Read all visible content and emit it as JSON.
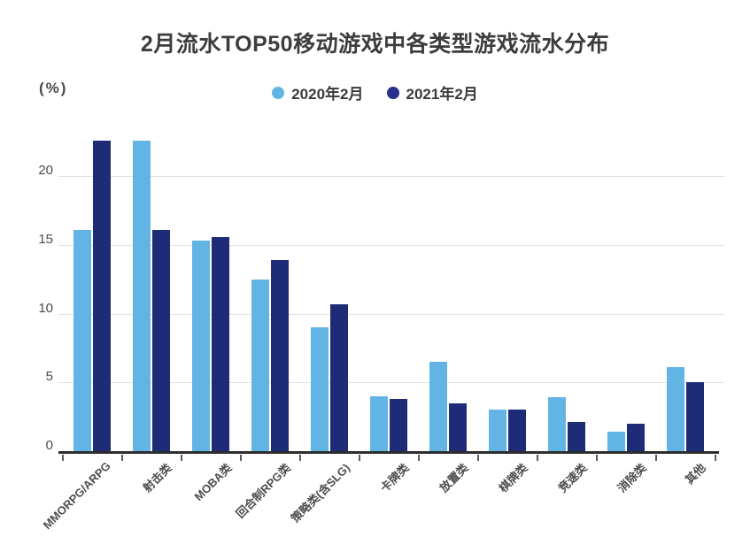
{
  "title": "2月流水TOP50移动游戏中各类型游戏流水分布",
  "y_axis_unit_label": "(%)",
  "colors": {
    "background": "#ffffff",
    "title_text": "#3d3d3d",
    "axis_text": "#4a4a4a",
    "category_text": "#4d4d4d",
    "gridline": "#e2e2e2",
    "axis_line": "#2d2d2d",
    "tick_mark": "#5a5a5a",
    "series_2020": "#62b4e4",
    "series_2021": "#1e2b76",
    "legend_dot_2021": "#27308f"
  },
  "chart_data": {
    "type": "bar",
    "title": "2月流水TOP50移动游戏中各类型游戏流水分布",
    "ylabel": "(%)",
    "xlabel": "",
    "ylim": [
      0,
      23.5
    ],
    "y_ticks": [
      0,
      5,
      10,
      15,
      20
    ],
    "grid": true,
    "legend_position": "top",
    "categories": [
      "MMORPG/ARPG",
      "射击类",
      "MOBA类",
      "回合制RPG类",
      "策略类(含SLG)",
      "卡牌类",
      "放置类",
      "棋牌类",
      "竞速类",
      "消除类",
      "其他"
    ],
    "series": [
      {
        "name": "2020年2月",
        "color": "#62b4e4",
        "values": [
          16.1,
          22.6,
          15.3,
          12.5,
          9.0,
          4.0,
          6.5,
          3.0,
          3.9,
          1.4,
          6.1
        ]
      },
      {
        "name": "2021年2月",
        "color": "#1e2b76",
        "values": [
          22.6,
          16.1,
          15.6,
          13.9,
          10.7,
          3.8,
          3.5,
          3.0,
          2.1,
          2.0,
          5.0
        ]
      }
    ]
  }
}
